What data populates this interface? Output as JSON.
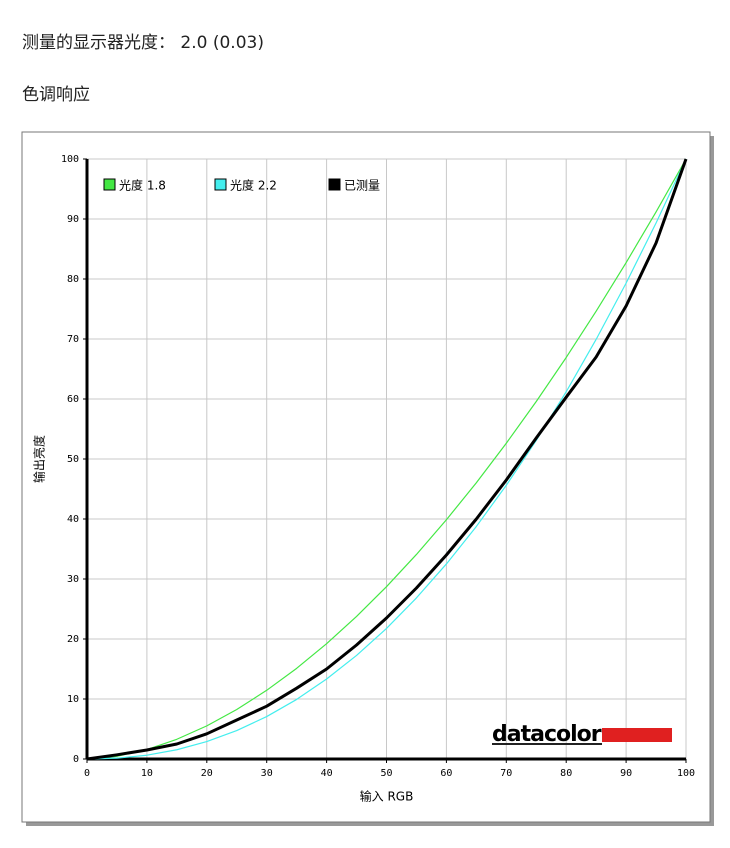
{
  "header": {
    "title": "测量的显示器光度： 2.0 (0.03)",
    "subtitle": "色调响应"
  },
  "chart_data": {
    "type": "line",
    "x_label": "输入 RGB",
    "y_label": "输出亮度",
    "watermark": "datacolor",
    "x": [
      0,
      5,
      10,
      15,
      20,
      25,
      30,
      35,
      40,
      45,
      50,
      55,
      60,
      65,
      70,
      75,
      80,
      85,
      90,
      95,
      100
    ],
    "series": [
      {
        "name": "光度 1.8",
        "color": "#44e844",
        "linewidth": 1.2,
        "values": [
          0,
          0.45,
          1.58,
          3.29,
          5.52,
          8.25,
          11.45,
          15.11,
          19.22,
          23.76,
          28.72,
          34.09,
          39.87,
          46.05,
          52.63,
          59.58,
          66.92,
          74.64,
          82.72,
          91.18,
          100
        ]
      },
      {
        "name": "光度 2.2",
        "color": "#44eeee",
        "linewidth": 1.2,
        "values": [
          0,
          0.14,
          0.63,
          1.54,
          2.9,
          4.74,
          7.07,
          9.93,
          13.33,
          17.26,
          21.76,
          26.85,
          32.51,
          38.76,
          45.62,
          53.1,
          61.21,
          69.94,
          79.31,
          89.33,
          100
        ]
      },
      {
        "name": "已测量",
        "color": "#000000",
        "linewidth": 3,
        "values": [
          0,
          0.7,
          1.5,
          2.5,
          4.2,
          6.5,
          8.8,
          11.8,
          15,
          19,
          23.5,
          28.5,
          34,
          40,
          46.5,
          53.5,
          60.3,
          67,
          75.5,
          86,
          100
        ]
      }
    ],
    "xlim": [
      0,
      100
    ],
    "ylim": [
      0,
      100
    ],
    "xticks": [
      0,
      10,
      20,
      30,
      40,
      50,
      60,
      70,
      80,
      90,
      100
    ],
    "yticks": [
      0,
      10,
      20,
      30,
      40,
      50,
      60,
      70,
      80,
      90,
      100
    ],
    "grid": true,
    "legend": "upper left"
  }
}
